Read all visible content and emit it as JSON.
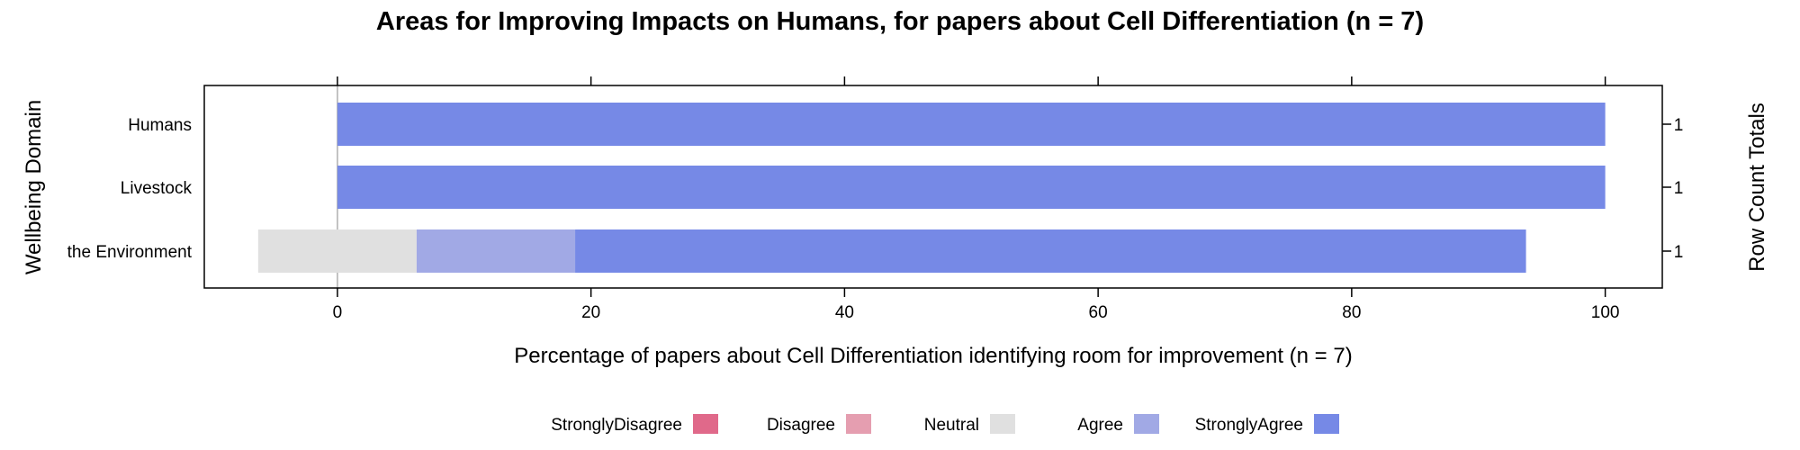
{
  "chart_data": {
    "type": "bar",
    "orientation": "horizontal",
    "stacked": "diverging",
    "title": "Areas for Improving Impacts on Humans, for papers about Cell Differentiation (n = 7)",
    "xlabel": "Percentage of papers about Cell Differentiation identifying room for improvement (n = 7)",
    "ylabel": "Wellbeing Domain",
    "y2label": "Row Count Totals",
    "xlim": [
      -10.5,
      104.5
    ],
    "xticks": [
      "0",
      "20",
      "40",
      "60",
      "80",
      "100"
    ],
    "categories": [
      "Humans",
      "Livestock",
      "the Environment"
    ],
    "row_totals": [
      "1",
      "1",
      "1"
    ],
    "series": [
      {
        "name": "StronglyDisagree",
        "color": "#e0698a",
        "values": [
          0,
          0,
          0
        ]
      },
      {
        "name": "Disagree",
        "color": "#e59eb0",
        "values": [
          0,
          0,
          0
        ]
      },
      {
        "name": "Neutral",
        "color": "#e0e0e0",
        "values": [
          0,
          0,
          12.5
        ]
      },
      {
        "name": "Agree",
        "color": "#a1a9e5",
        "values": [
          0,
          0,
          12.5
        ]
      },
      {
        "name": "StronglyAgree",
        "color": "#7689e6",
        "values": [
          100,
          100,
          75
        ]
      }
    ],
    "legend_position": "bottom",
    "grid": false
  }
}
